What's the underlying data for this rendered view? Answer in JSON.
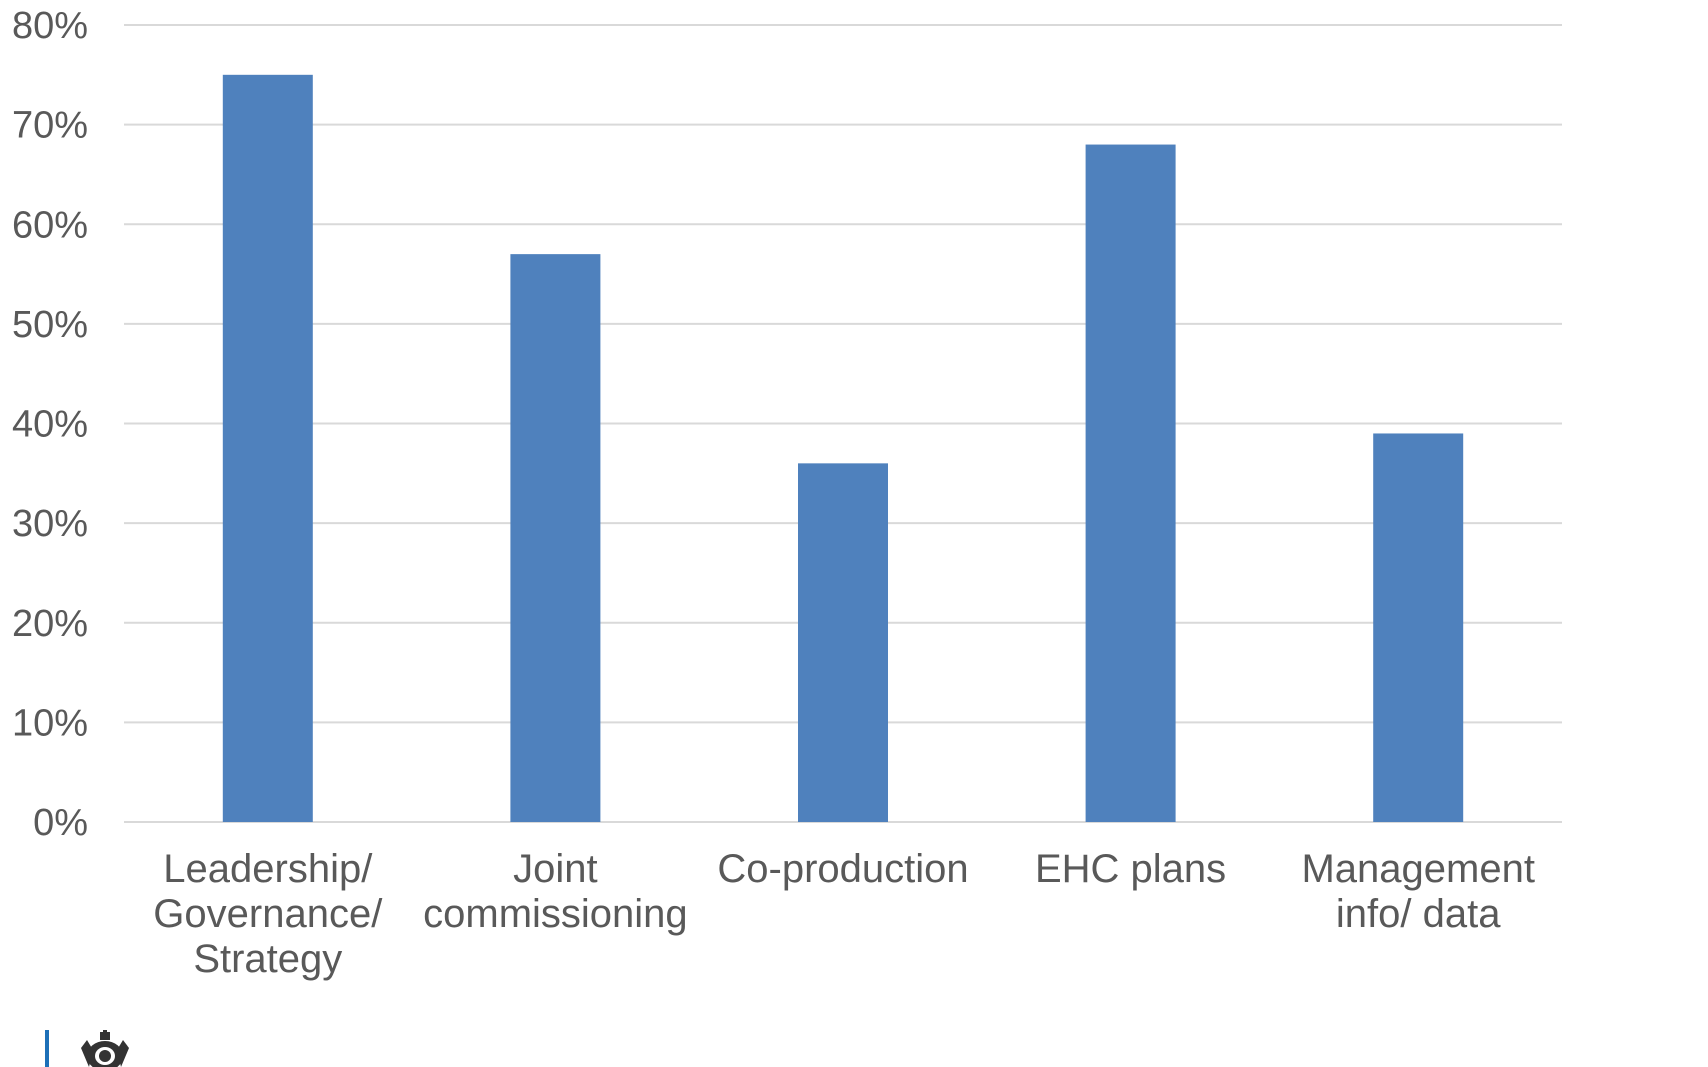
{
  "chart_data": {
    "type": "bar",
    "categories": [
      [
        "Leadership/",
        "Governance/",
        "Strategy"
      ],
      [
        "Joint",
        "commissioning"
      ],
      [
        "Co-production"
      ],
      [
        "EHC plans"
      ],
      [
        "Management",
        "info/ data"
      ]
    ],
    "values": [
      75,
      57,
      36,
      68,
      39
    ],
    "y_ticks": [
      "0%",
      "10%",
      "20%",
      "30%",
      "40%",
      "50%",
      "60%",
      "70%",
      "80%"
    ],
    "ylim": [
      0,
      80
    ],
    "grid": true,
    "bar_color": "#4f81bd",
    "title": "",
    "xlabel": "",
    "ylabel": ""
  },
  "logo": {
    "icon": "royal-coat-of-arms-icon",
    "accent": "#1d70b8"
  }
}
